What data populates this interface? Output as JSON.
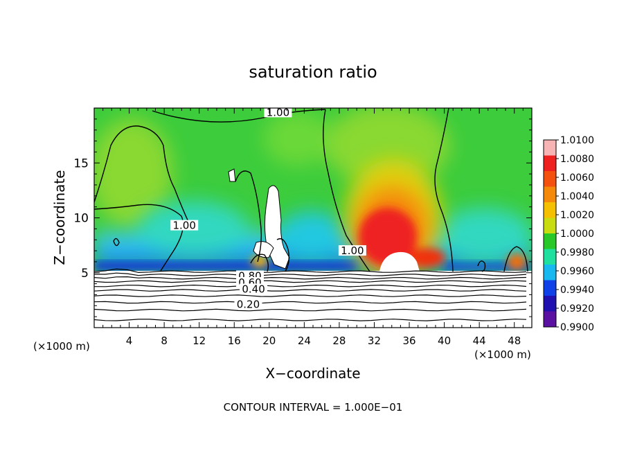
{
  "chart_data": {
    "type": "heatmap",
    "title": "saturation ratio",
    "xlabel": "X−coordinate",
    "ylabel": "Z−coordinate",
    "x_unit_left": "(×1000 m)",
    "x_unit_right": "(×1000 m)",
    "footer": "CONTOUR INTERVAL = 1.000E−01",
    "xlim": [
      0,
      50
    ],
    "ylim": [
      0,
      20
    ],
    "x_ticks": [
      4,
      8,
      12,
      16,
      20,
      24,
      28,
      32,
      36,
      40,
      44,
      48
    ],
    "y_ticks": [
      5,
      10,
      15
    ],
    "colorbar": {
      "min": 0.99,
      "max": 1.01,
      "labels": [
        "1.0100",
        "1.0080",
        "1.0060",
        "1.0040",
        "1.0020",
        "1.0000",
        "0.9980",
        "0.9960",
        "0.9940",
        "0.9920",
        "0.9900"
      ],
      "colors": [
        "#f7b4b4",
        "#ee2020",
        "#f45010",
        "#f58a0a",
        "#f5c000",
        "#c8dc10",
        "#28c828",
        "#20e0a0",
        "#18b8f0",
        "#1040e8",
        "#2010b0",
        "#5a10a0"
      ]
    },
    "contour_labels": [
      {
        "text": "1.00",
        "x": 21,
        "y": 19.6
      },
      {
        "text": "1.00",
        "x": 10.3,
        "y": 9.3
      },
      {
        "text": "1.00",
        "x": 29.5,
        "y": 7.0
      },
      {
        "text": "0.80",
        "x": 17.8,
        "y": 4.7
      },
      {
        "text": "0.60",
        "x": 17.8,
        "y": 4.1
      },
      {
        "text": "0.40",
        "x": 18.2,
        "y": 3.5
      },
      {
        "text": "0.20",
        "x": 17.6,
        "y": 2.1
      }
    ],
    "lower_contour_levels_z": [
      5.1,
      4.8,
      4.5,
      4.2,
      3.8,
      3.4,
      2.9,
      2.3,
      1.6,
      0.7
    ]
  }
}
